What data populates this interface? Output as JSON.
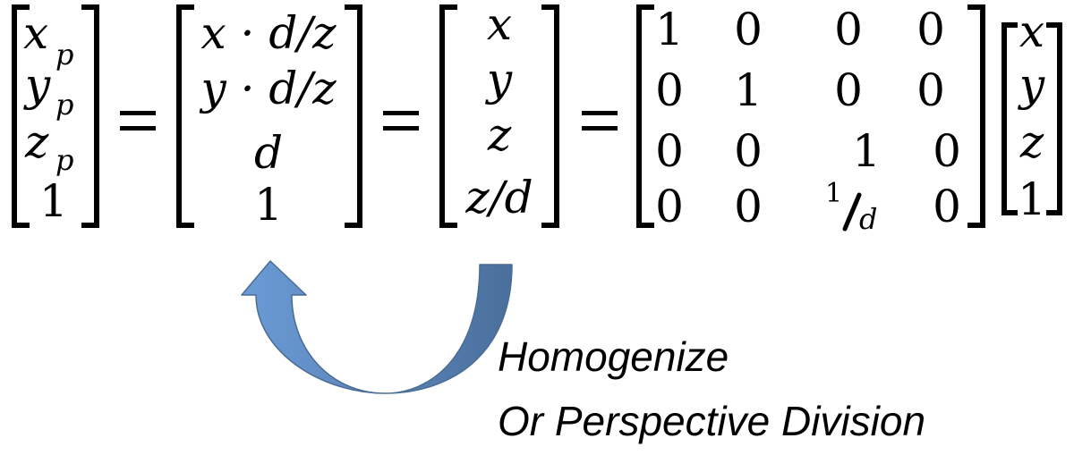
{
  "equation": {
    "lhs_vector": [
      "x",
      "y",
      "z",
      "1"
    ],
    "lhs_subscript": "p",
    "homogenized_vector": [
      "x · d/z",
      "y · d/z",
      "d",
      "1"
    ],
    "homogeneous_vector": [
      "x",
      "y",
      "z",
      "z/d"
    ],
    "matrix": [
      [
        "1",
        "0",
        "0",
        "0"
      ],
      [
        "0",
        "1",
        "0",
        "0"
      ],
      [
        "0",
        "0",
        "1",
        "0"
      ],
      [
        "0",
        "0",
        "",
        "0"
      ]
    ],
    "matrix_fraction": {
      "numerator": "1",
      "denominator": "d"
    },
    "input_vector": [
      "x",
      "y",
      "z",
      "1"
    ],
    "equals": "="
  },
  "annotation": {
    "line1": "Homogenize",
    "line2": "Or Perspective Division",
    "arrow_color_light": "#6b9bd6",
    "arrow_color_dark": "#4a6f9c"
  }
}
